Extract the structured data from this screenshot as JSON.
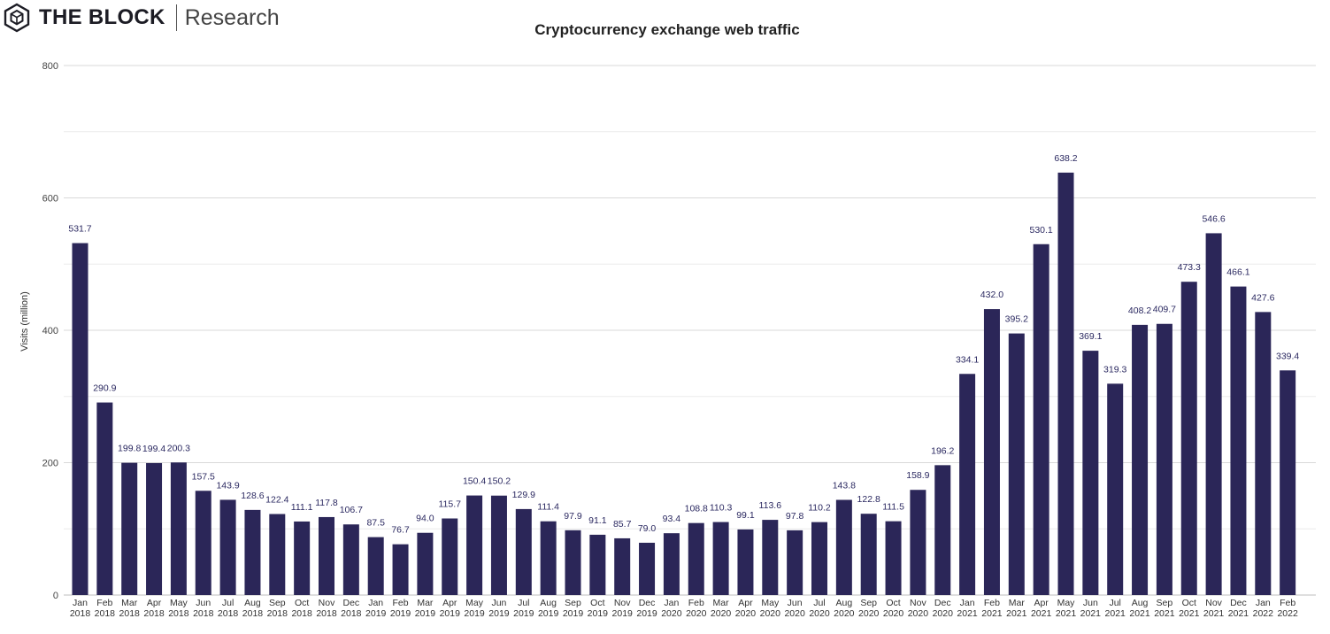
{
  "brand": {
    "name": "THE BLOCK",
    "sub": "Research",
    "logo_icon": "cube-logo-icon"
  },
  "chart_data": {
    "type": "bar",
    "title": "Cryptocurrency exchange web traffic",
    "xlabel": "",
    "ylabel": "Visits (million)",
    "ylim": [
      0,
      800
    ],
    "yticks": [
      0,
      200,
      400,
      600,
      800
    ],
    "grid": true,
    "bar_color": "#2b2658",
    "categories": [
      [
        "Jan",
        "2018"
      ],
      [
        "Feb",
        "2018"
      ],
      [
        "Mar",
        "2018"
      ],
      [
        "Apr",
        "2018"
      ],
      [
        "May",
        "2018"
      ],
      [
        "Jun",
        "2018"
      ],
      [
        "Jul",
        "2018"
      ],
      [
        "Aug",
        "2018"
      ],
      [
        "Sep",
        "2018"
      ],
      [
        "Oct",
        "2018"
      ],
      [
        "Nov",
        "2018"
      ],
      [
        "Dec",
        "2018"
      ],
      [
        "Jan",
        "2019"
      ],
      [
        "Feb",
        "2019"
      ],
      [
        "Mar",
        "2019"
      ],
      [
        "Apr",
        "2019"
      ],
      [
        "May",
        "2019"
      ],
      [
        "Jun",
        "2019"
      ],
      [
        "Jul",
        "2019"
      ],
      [
        "Aug",
        "2019"
      ],
      [
        "Sep",
        "2019"
      ],
      [
        "Oct",
        "2019"
      ],
      [
        "Nov",
        "2019"
      ],
      [
        "Dec",
        "2019"
      ],
      [
        "Jan",
        "2020"
      ],
      [
        "Feb",
        "2020"
      ],
      [
        "Mar",
        "2020"
      ],
      [
        "Apr",
        "2020"
      ],
      [
        "May",
        "2020"
      ],
      [
        "Jun",
        "2020"
      ],
      [
        "Jul",
        "2020"
      ],
      [
        "Aug",
        "2020"
      ],
      [
        "Sep",
        "2020"
      ],
      [
        "Oct",
        "2020"
      ],
      [
        "Nov",
        "2020"
      ],
      [
        "Dec",
        "2020"
      ],
      [
        "Jan",
        "2021"
      ],
      [
        "Feb",
        "2021"
      ],
      [
        "Mar",
        "2021"
      ],
      [
        "Apr",
        "2021"
      ],
      [
        "May",
        "2021"
      ],
      [
        "Jun",
        "2021"
      ],
      [
        "Jul",
        "2021"
      ],
      [
        "Aug",
        "2021"
      ],
      [
        "Sep",
        "2021"
      ],
      [
        "Oct",
        "2021"
      ],
      [
        "Nov",
        "2021"
      ],
      [
        "Dec",
        "2021"
      ],
      [
        "Jan",
        "2022"
      ],
      [
        "Feb",
        "2022"
      ]
    ],
    "values": [
      531.7,
      290.9,
      199.8,
      199.4,
      200.3,
      157.5,
      143.9,
      128.6,
      122.4,
      111.1,
      117.8,
      106.7,
      87.5,
      76.7,
      94.0,
      115.7,
      150.4,
      150.2,
      129.9,
      111.4,
      97.9,
      91.1,
      85.7,
      79.0,
      93.4,
      108.8,
      110.3,
      99.1,
      113.6,
      97.8,
      110.2,
      143.8,
      122.8,
      111.5,
      158.9,
      196.2,
      334.1,
      432.0,
      395.2,
      530.1,
      638.2,
      369.1,
      319.3,
      408.2,
      409.7,
      473.3,
      546.6,
      466.1,
      427.6,
      339.4
    ]
  }
}
